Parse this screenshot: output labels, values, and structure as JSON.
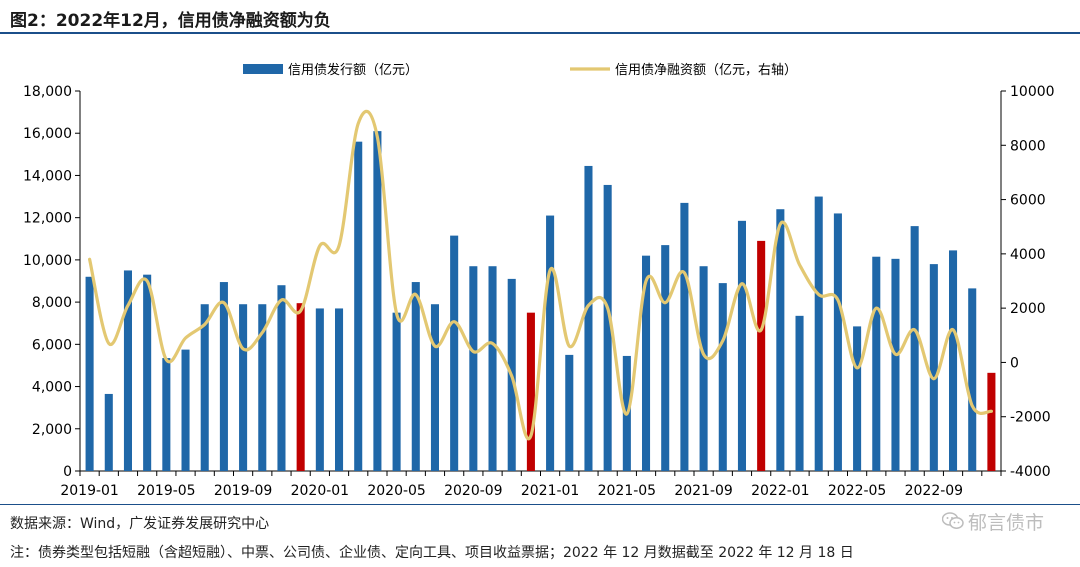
{
  "header": {
    "title": "图2：2022年12月，信用债净融资额为负"
  },
  "footer": {
    "source": "数据来源：Wind，广发证券发展研究中心",
    "note": "注：债券类型包括短融（含超短融）、中票、公司债、企业债、定向工具、项目收益票据；2022 年 12 月数据截至 2022 年 12 月 18 日",
    "watermark": "郁言债市"
  },
  "chart_data": {
    "type": "bar+line",
    "categories": [
      "2019-01",
      "2019-02",
      "2019-03",
      "2019-04",
      "2019-05",
      "2019-06",
      "2019-07",
      "2019-08",
      "2019-09",
      "2019-10",
      "2019-11",
      "2019-12",
      "2020-01",
      "2020-02",
      "2020-03",
      "2020-04",
      "2020-05",
      "2020-06",
      "2020-07",
      "2020-08",
      "2020-09",
      "2020-10",
      "2020-11",
      "2020-12",
      "2021-01",
      "2021-02",
      "2021-03",
      "2021-04",
      "2021-05",
      "2021-06",
      "2021-07",
      "2021-08",
      "2021-09",
      "2021-10",
      "2021-11",
      "2021-12",
      "2022-01",
      "2022-02",
      "2022-03",
      "2022-04",
      "2022-05",
      "2022-06",
      "2022-07",
      "2022-08",
      "2022-09",
      "2022-10",
      "2022-11",
      "2022-12"
    ],
    "x_tick_labels": [
      "2019-01",
      "2019-05",
      "2019-09",
      "2020-01",
      "2020-05",
      "2020-09",
      "2021-01",
      "2021-05",
      "2021-09",
      "2022-01",
      "2022-05",
      "2022-09"
    ],
    "series": [
      {
        "name": "信用债发行额（亿元）",
        "type": "bar",
        "axis": "left",
        "values": [
          9200,
          3650,
          9500,
          9300,
          5350,
          5750,
          7900,
          8950,
          7900,
          7900,
          8800,
          7950,
          7700,
          7700,
          15600,
          16100,
          7500,
          8950,
          7900,
          11150,
          9700,
          9700,
          9100,
          7500,
          12100,
          5500,
          14450,
          13550,
          5450,
          10200,
          10700,
          12700,
          9700,
          8900,
          11850,
          10900,
          12400,
          7350,
          13000,
          12200,
          6850,
          10150,
          10050,
          11600,
          9800,
          10450,
          8650,
          4650
        ],
        "highlight_color": "#c00000",
        "highlight_months": [
          "2019-12",
          "2020-12",
          "2021-12",
          "2022-12"
        ]
      },
      {
        "name": "信用债净融资额（亿元，右轴）",
        "type": "line",
        "axis": "right",
        "values": [
          3800,
          700,
          2100,
          3000,
          100,
          900,
          1400,
          2200,
          500,
          1100,
          2300,
          1900,
          4300,
          4300,
          8800,
          8300,
          1800,
          2500,
          600,
          1500,
          400,
          700,
          -500,
          -2700,
          3400,
          600,
          2100,
          2000,
          -1900,
          3000,
          2200,
          3300,
          300,
          800,
          2900,
          1200,
          5100,
          3600,
          2500,
          2300,
          -200,
          2000,
          300,
          1200,
          -600,
          1200,
          -1600,
          -1800
        ]
      }
    ],
    "ylim_left": [
      0,
      18000
    ],
    "ylim_right": [
      -4000,
      10000
    ],
    "yticks_left": [
      "0",
      "2,000",
      "4,000",
      "6,000",
      "8,000",
      "10,000",
      "12,000",
      "14,000",
      "16,000",
      "18,000"
    ],
    "yticks_right": [
      "-4000",
      "-2000",
      "0",
      "2000",
      "4000",
      "6000",
      "8000",
      "10000"
    ],
    "colors": {
      "bar": "#1f67a8",
      "highlight": "#c00000",
      "line": "#e3c872"
    },
    "legend_position": "top"
  }
}
